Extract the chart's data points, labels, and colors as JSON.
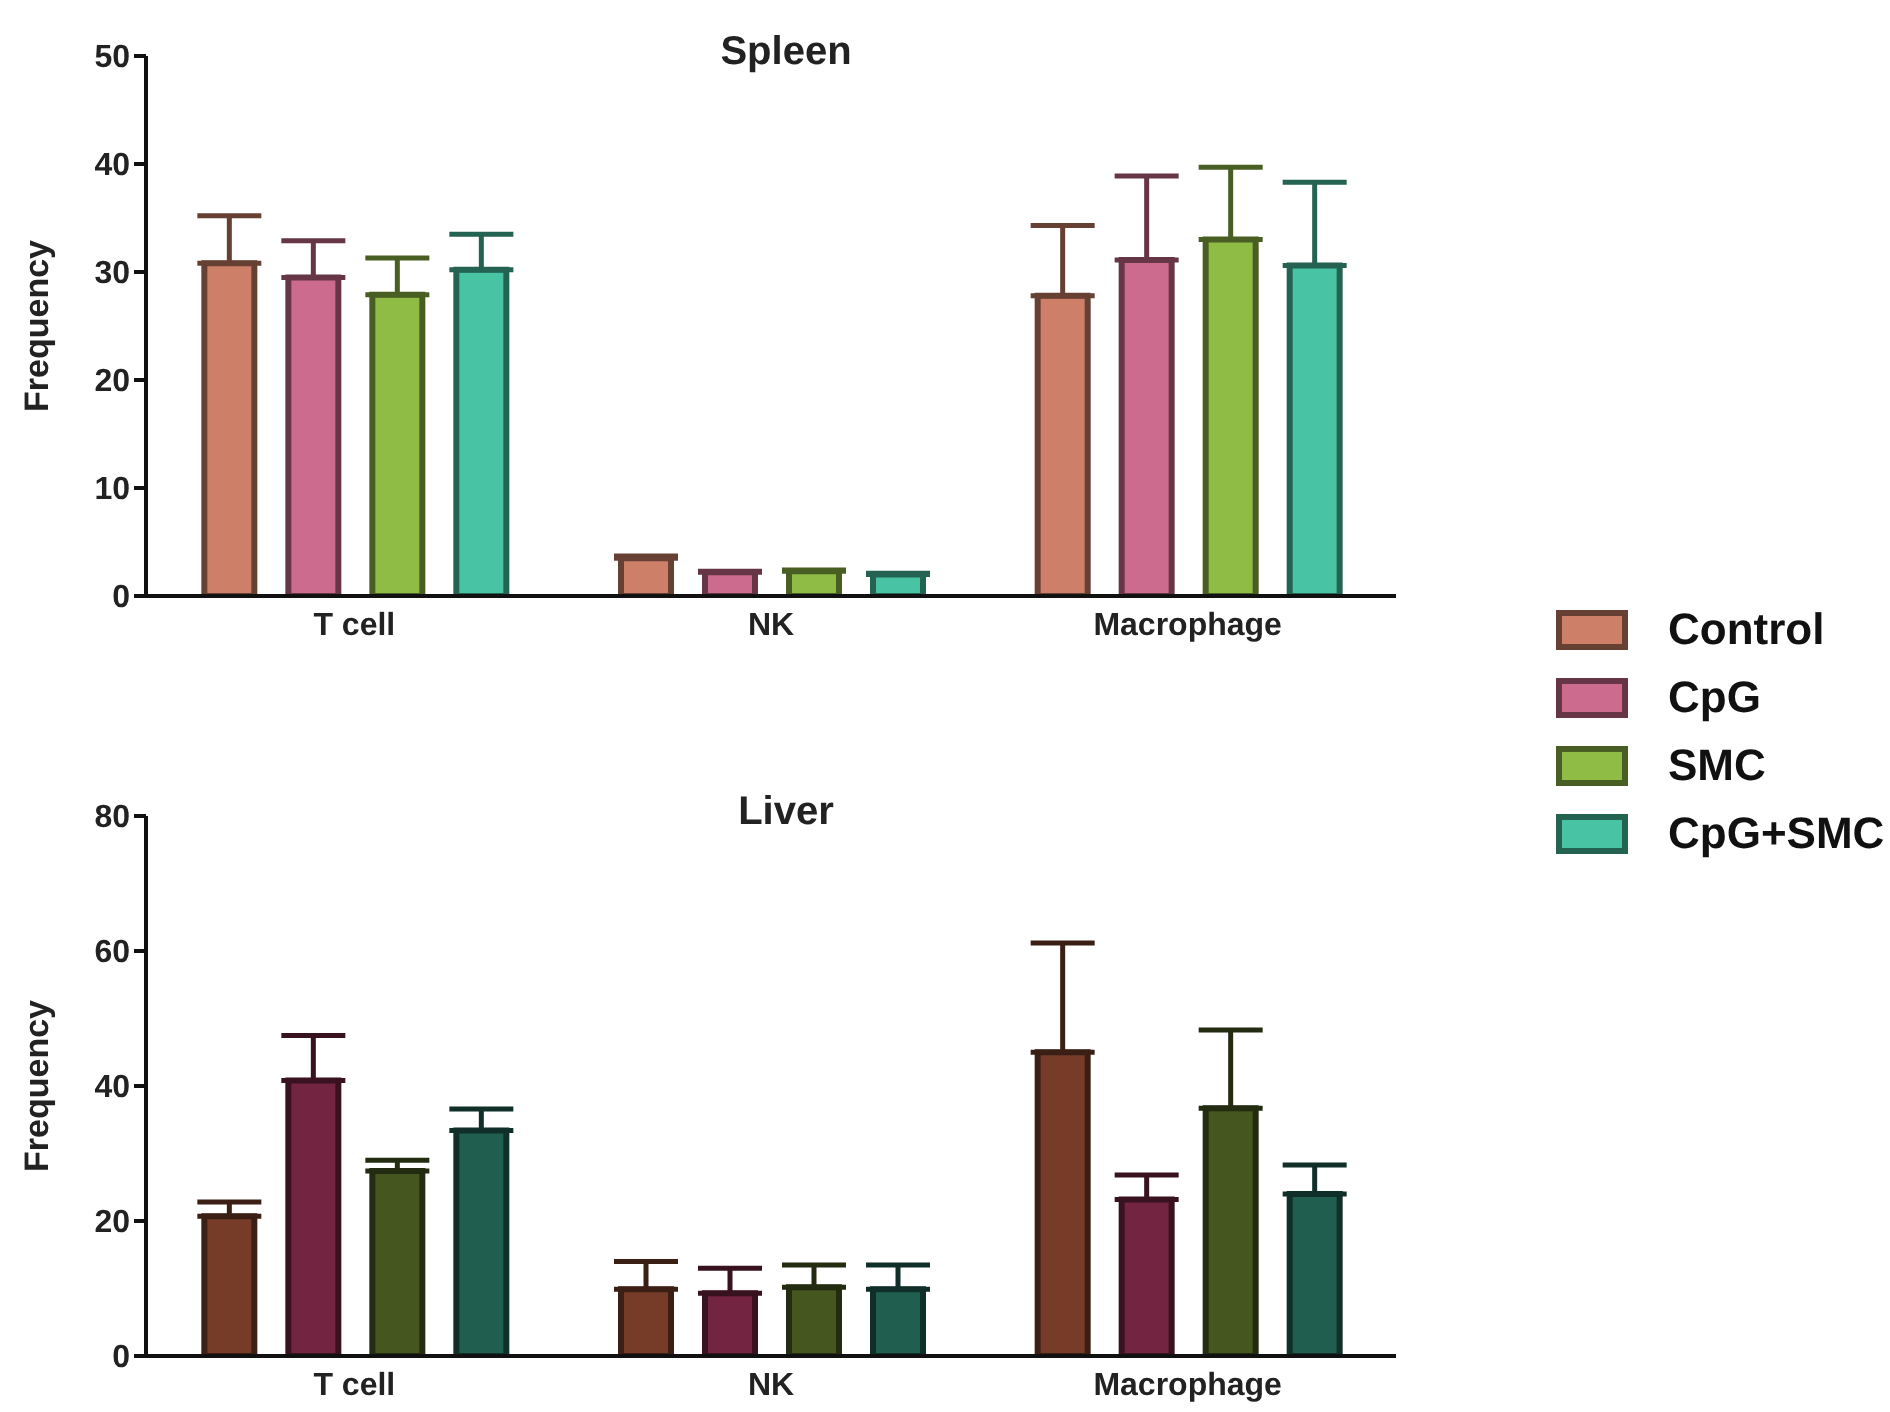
{
  "chart_data": [
    {
      "type": "bar",
      "title": "Spleen",
      "ylabel": "Frequency",
      "categories": [
        "T cell",
        "NK",
        "Macrophage"
      ],
      "ylim": [
        0,
        50
      ],
      "yticks": [
        0,
        10,
        20,
        30,
        40,
        50
      ],
      "grid": false,
      "legend": "right",
      "series": [
        {
          "name": "Control",
          "color": "#cd7f68",
          "values": [
            30.8,
            3.5,
            27.8
          ],
          "errors": [
            [
              30.8,
              35.2
            ],
            [
              3.5,
              3.7
            ],
            [
              27.8,
              34.3
            ]
          ]
        },
        {
          "name": "CpG",
          "color": "#cc6b8e",
          "values": [
            29.5,
            2.2,
            31.1
          ],
          "errors": [
            [
              29.5,
              32.9
            ],
            [
              2.2,
              2.3
            ],
            [
              31.1,
              38.9
            ]
          ]
        },
        {
          "name": "SMC",
          "color": "#8fbc44",
          "values": [
            27.9,
            2.3,
            33.0
          ],
          "errors": [
            [
              27.9,
              31.3
            ],
            [
              2.3,
              2.4
            ],
            [
              33.0,
              39.7
            ]
          ]
        },
        {
          "name": "CpG+SMC",
          "color": "#48c4a4",
          "values": [
            30.2,
            2.0,
            30.6
          ],
          "errors": [
            [
              30.2,
              33.5
            ],
            [
              2.0,
              2.1
            ],
            [
              30.6,
              38.3
            ]
          ]
        }
      ]
    },
    {
      "type": "bar",
      "title": "Liver",
      "ylabel": "Frequency",
      "categories": [
        "T cell",
        "NK",
        "Macrophage"
      ],
      "ylim": [
        0,
        80
      ],
      "yticks": [
        0,
        20,
        40,
        60,
        80
      ],
      "grid": false,
      "series": [
        {
          "color": "#763c28",
          "values": [
            20.7,
            9.9,
            45.0
          ],
          "errors": [
            [
              20.7,
              22.8
            ],
            [
              9.9,
              14.0
            ],
            [
              45.0,
              61.2
            ]
          ]
        },
        {
          "color": "#722440",
          "values": [
            40.8,
            9.3,
            23.2
          ],
          "errors": [
            [
              40.8,
              47.5
            ],
            [
              9.3,
              13.0
            ],
            [
              23.2,
              26.8
            ]
          ]
        },
        {
          "color": "#45561f",
          "values": [
            27.4,
            10.2,
            36.7
          ],
          "errors": [
            [
              27.4,
              29.0
            ],
            [
              10.2,
              13.5
            ],
            [
              36.7,
              48.3
            ]
          ]
        },
        {
          "color": "#205e50",
          "values": [
            33.4,
            9.9,
            24.0
          ],
          "errors": [
            [
              33.4,
              36.6
            ],
            [
              9.9,
              13.5
            ],
            [
              24.0,
              28.3
            ]
          ]
        }
      ]
    }
  ]
}
